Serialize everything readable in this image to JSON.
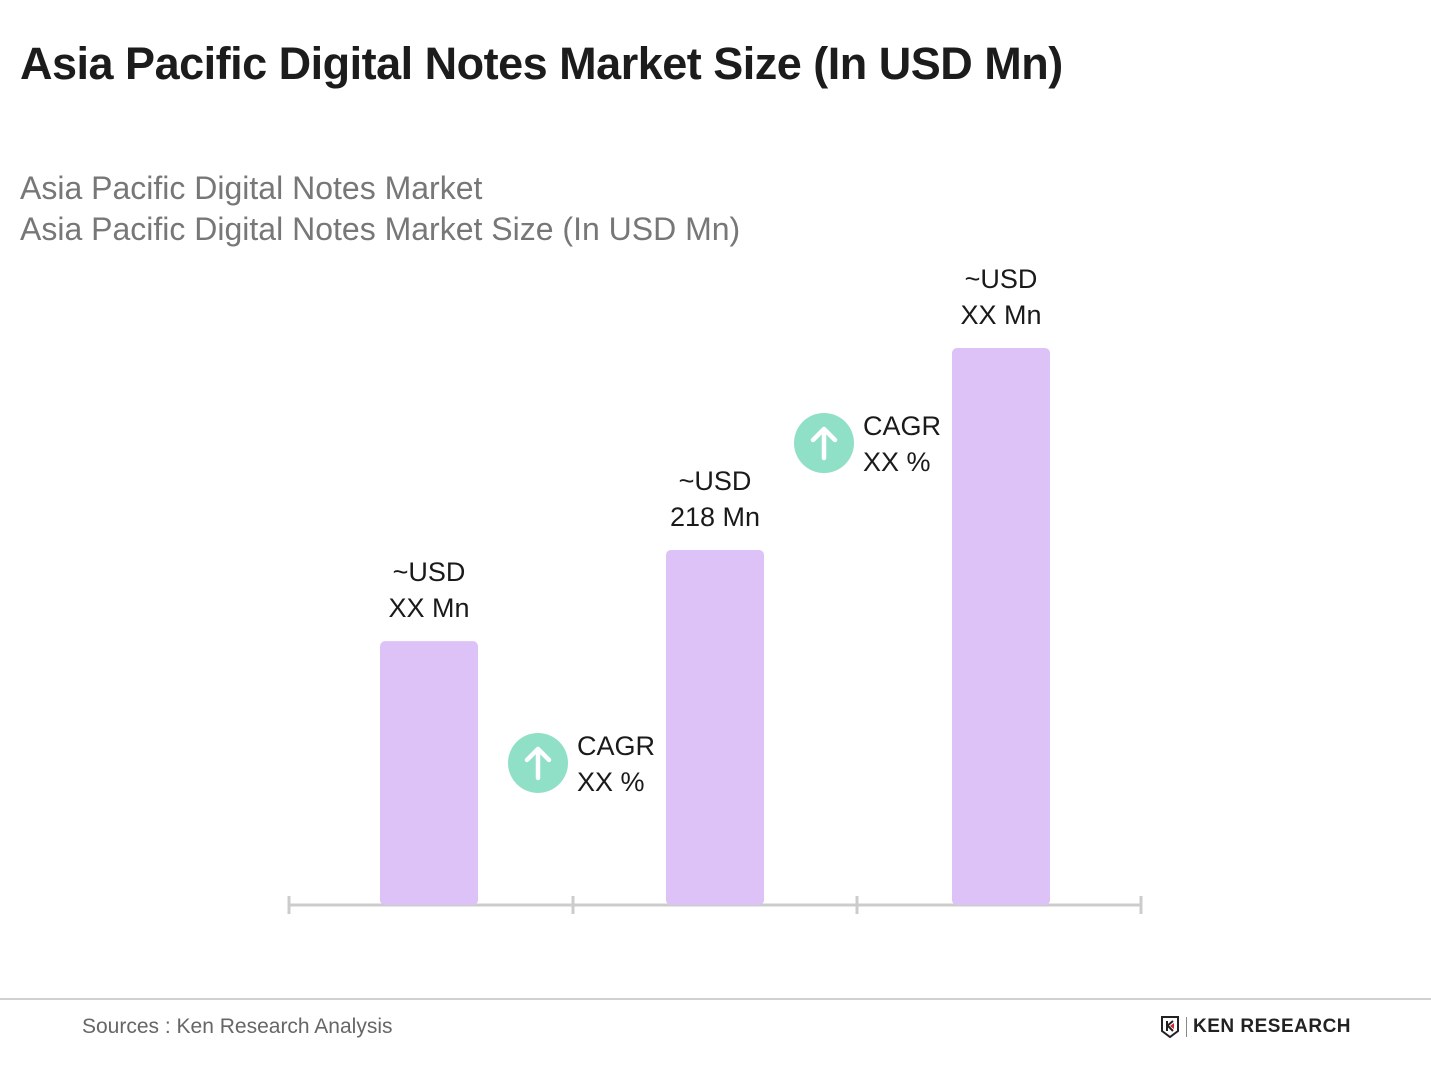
{
  "title": "Asia Pacific Digital Notes Market Size (In USD Mn)",
  "subtitle_lines": [
    "Asia Pacific Digital Notes Market",
    "Asia Pacific Digital Notes Market Size (In USD Mn)"
  ],
  "chart_data": {
    "type": "bar",
    "title": "Asia Pacific Digital Notes Market Size (In USD Mn)",
    "categories": [
      "",
      "",
      ""
    ],
    "values": [
      162,
      218,
      342
    ],
    "data_labels": [
      [
        "~USD",
        "XX Mn"
      ],
      [
        "~USD",
        "218 Mn"
      ],
      [
        "~USD",
        "XX Mn"
      ]
    ],
    "annotations": [
      {
        "type": "cagr",
        "between": [
          0,
          1
        ],
        "lines": [
          "CAGR",
          "XX %"
        ],
        "icon": "arrow-up-circle-icon"
      },
      {
        "type": "cagr",
        "between": [
          1,
          2
        ],
        "lines": [
          "CAGR",
          "XX %"
        ],
        "icon": "arrow-up-circle-icon"
      }
    ],
    "xlabel": "",
    "ylabel": "",
    "ylim": [
      0,
      342
    ],
    "grid": false,
    "colors": {
      "bar": "#dcc2f6",
      "axis": "#cccccc",
      "cagr_icon": "#8fe0c6"
    }
  },
  "footer": {
    "source": "Sources : Ken Research Analysis",
    "logo_text": "KEN RESEARCH"
  }
}
